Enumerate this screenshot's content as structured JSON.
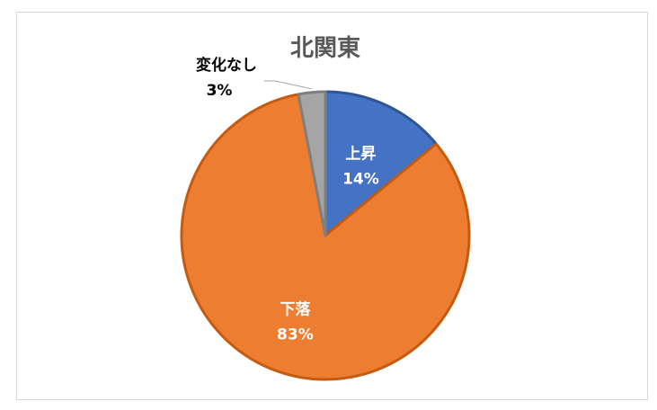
{
  "chart_data": {
    "type": "pie",
    "title": "北関東",
    "categories": [
      "上昇",
      "下落",
      "変化なし"
    ],
    "values": [
      14,
      83,
      3
    ],
    "value_labels": [
      "14%",
      "83%",
      "3%"
    ],
    "colors": [
      "#4472c4",
      "#ed7d31",
      "#a5a5a5"
    ],
    "legend": "none"
  }
}
